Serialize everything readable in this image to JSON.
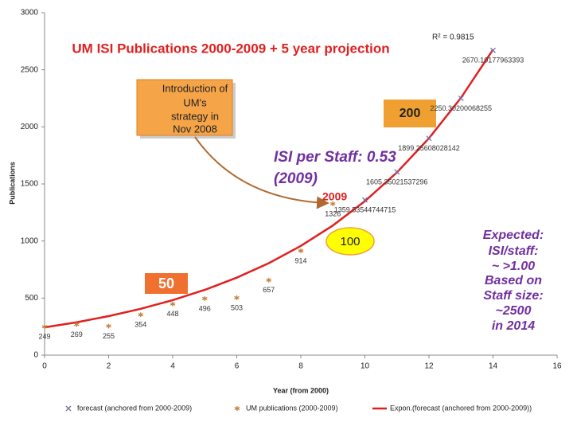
{
  "chart_data": {
    "type": "scatter",
    "title": "UM ISI Publications 2000-2009 + 5 year projection",
    "xlabel": "Year (from 2000)",
    "ylabel": "Publications",
    "xlim": [
      0,
      16
    ],
    "xticks": [
      0,
      2,
      4,
      6,
      8,
      10,
      12,
      14,
      16
    ],
    "ylim": [
      0,
      3000
    ],
    "yticks": [
      0,
      500,
      1000,
      1500,
      2000,
      2500,
      3000
    ],
    "series": [
      {
        "name": "forecast (anchored from 2000-2009)",
        "type": "scatter",
        "marker": "x",
        "color": "#7a6a9a",
        "x": [
          10,
          11,
          12,
          13,
          14
        ],
        "values": [
          1359.53544744715,
          1605.35021537296,
          1899.25608028142,
          2250.30200068255,
          2670.10177963393
        ]
      },
      {
        "name": "UM publications (2000-2009)",
        "type": "scatter",
        "marker": "star",
        "color": "#c8803a",
        "x": [
          0,
          1,
          2,
          3,
          4,
          5,
          6,
          7,
          8,
          9
        ],
        "values": [
          249,
          269,
          255,
          354,
          448,
          496,
          503,
          657,
          914,
          1326
        ]
      },
      {
        "name": "Expon.(forecast (anchored from 2000-2009))",
        "type": "line",
        "color": "#e02020",
        "x": [
          0,
          1,
          2,
          3,
          4,
          5,
          6,
          7,
          8,
          9,
          10,
          11,
          12,
          13,
          14
        ],
        "values": [
          243,
          288,
          342,
          406,
          482,
          572,
          679,
          806,
          957,
          1136,
          1349,
          1601,
          1900,
          2255,
          2677
        ]
      }
    ],
    "annotations": {
      "r_squared": "R² = 0.9815",
      "strategy_note": [
        "Introduction of",
        "UM's",
        "strategy in",
        "Nov 2008"
      ],
      "box_200": "200",
      "isi_per_staff": [
        "ISI per Staff: 0.53",
        "(2009)"
      ],
      "label_2009": "2009",
      "oval_100": "100",
      "box_50": "50",
      "expected": [
        "Expected:",
        "ISI/staff:",
        "~ >1.00",
        "Based on",
        "Staff size:",
        "~2500",
        "in 2014"
      ]
    }
  }
}
